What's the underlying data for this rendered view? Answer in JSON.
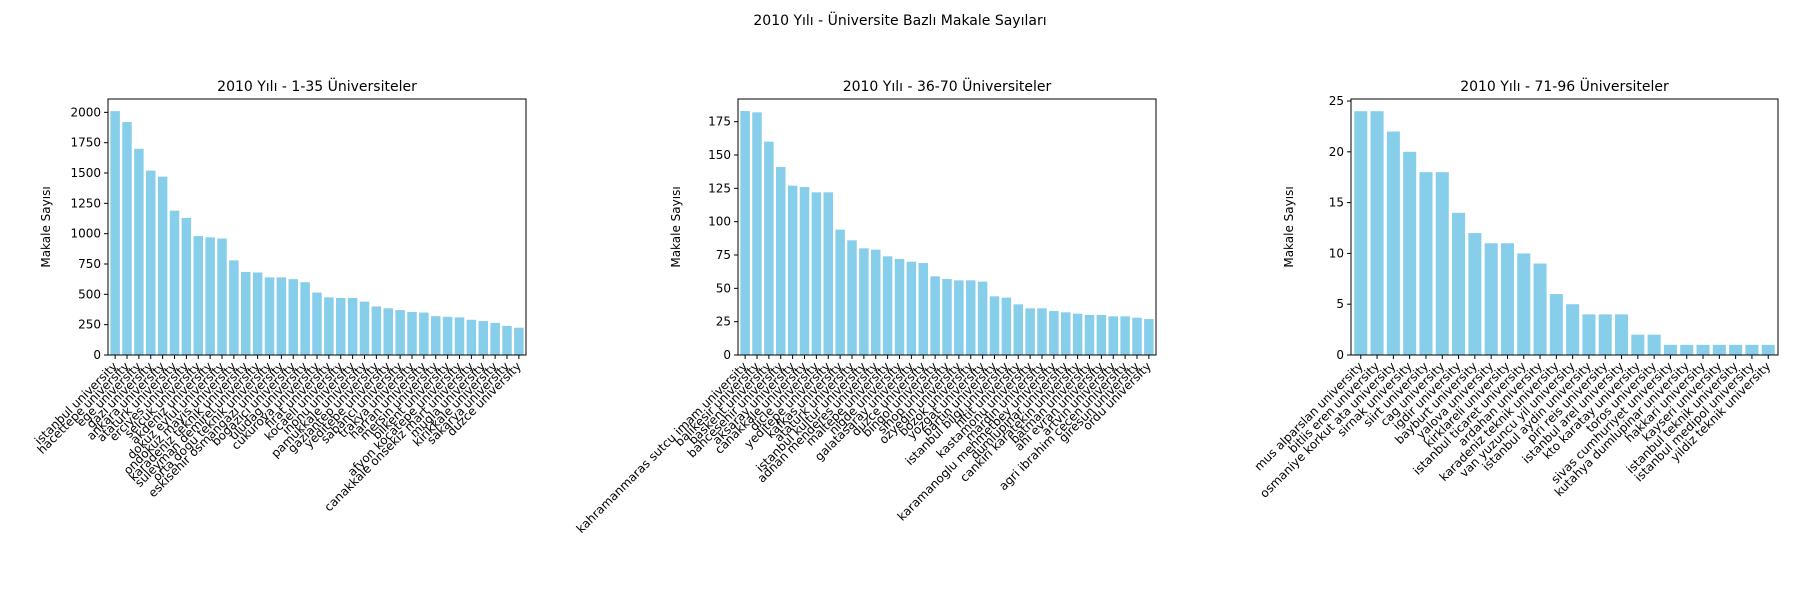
{
  "title": "2010 Yılı - Üniversite Bazlı Makale Sayıları",
  "chart_data": [
    {
      "type": "bar",
      "title": "2010 Yılı - 1-35 Üniversiteler",
      "ylabel": "Makale Sayısı",
      "color": "#87ceeb",
      "categories": [
        "istanbul university",
        "hacettepe university",
        "ege university",
        "gazi university",
        "ankara university",
        "ataturk university",
        "erciyes university",
        "selcuk university",
        "akdeniz university",
        "dokuz eylul university",
        "ondokuz mayis university",
        "karadeniz teknik university",
        "suleyman demirel university",
        "orta dogu teknik university",
        "eskisehir osmangazi university",
        "bogazici university",
        "uludag university",
        "cukurova university",
        "firat university",
        "kocaeli university",
        "inonu university",
        "pamukkale university",
        "gaziantep university",
        "yeditepe university",
        "sabanci university",
        "trakya university",
        "harran university",
        "mersin university",
        "bilkent university",
        "afyon kocatepe university",
        "canakkale onsekiz mart university",
        "mugla university",
        "kirikkale university",
        "sakarya university",
        "duzce university"
      ],
      "values": [
        2010,
        1920,
        1700,
        1520,
        1470,
        1190,
        1130,
        980,
        970,
        960,
        780,
        685,
        680,
        640,
        640,
        625,
        600,
        515,
        475,
        470,
        470,
        440,
        400,
        385,
        370,
        355,
        350,
        320,
        315,
        310,
        290,
        280,
        265,
        240,
        225
      ],
      "ylim": [
        0,
        2110
      ],
      "yticks": [
        0,
        250,
        500,
        750,
        1000,
        1250,
        1500,
        1750,
        2000
      ]
    },
    {
      "type": "bar",
      "title": "2010 Yılı - 36-70 Üniversiteler",
      "ylabel": "Makale Sayısı",
      "color": "#87ceeb",
      "categories": [
        "kahramanmaras sutcu imam university",
        "balikesir university",
        "baskent university",
        "bahcesehir university",
        "aksaray university",
        "canakkale university",
        "dicle university",
        "yeditepe university",
        "kafkas university",
        "ataturk university",
        "istanbul kultur university",
        "adnan menderes university",
        "maltepe university",
        "nigde university",
        "galatasaray university",
        "duzce university",
        "bingol university",
        "sinop university",
        "ozyegin university",
        "bozok university",
        "yozgat university",
        "bartin university",
        "istanbul bilgi university",
        "hitit university",
        "kastamonu university",
        "mardin university",
        "karamanoglu mehmetbey university",
        "dumlupinar university",
        "cankiri karatekin university",
        "batman university",
        "ahi evran university",
        "artvin university",
        "agri ibrahim cecen university",
        "giresun university",
        "ordu university"
      ],
      "values": [
        183,
        182,
        160,
        141,
        127,
        126,
        122,
        122,
        94,
        86,
        80,
        79,
        74,
        72,
        70,
        69,
        59,
        57,
        56,
        56,
        55,
        44,
        43,
        38,
        35,
        35,
        33,
        32,
        31,
        30,
        30,
        29,
        29,
        28,
        27
      ],
      "ylim": [
        0,
        192
      ],
      "yticks": [
        0,
        25,
        50,
        75,
        100,
        125,
        150,
        175
      ]
    },
    {
      "type": "bar",
      "title": "2010 Yılı - 71-96 Üniversiteler",
      "ylabel": "Makale Sayısı",
      "color": "#87ceeb",
      "categories": [
        "mus alparslan university",
        "bitlis eren university",
        "osmaniye korkut ata university",
        "sirnak university",
        "siirt university",
        "cag university",
        "igdir university",
        "bayburt university",
        "yalova university",
        "kirklareli university",
        "istanbul ticaret university",
        "ardahan university",
        "karadeniz teknik university",
        "van yuzuncu yil university",
        "istanbul aydin university",
        "piri reis university",
        "istanbul arel university",
        "kto karatay university",
        "toros university",
        "sivas cumhuriyet university",
        "kutahya dumlupinar university",
        "hakkari university",
        "kayseri university",
        "istanbul teknik university",
        "istanbul medipol university",
        "yildiz teknik university"
      ],
      "values": [
        24,
        24,
        22,
        20,
        18,
        18,
        14,
        12,
        11,
        11,
        10,
        9,
        6,
        5,
        4,
        4,
        4,
        2,
        2,
        1,
        1,
        1,
        1,
        1,
        1,
        1
      ],
      "ylim": [
        0,
        25.2
      ],
      "yticks": [
        0,
        5,
        10,
        15,
        20,
        25
      ]
    }
  ]
}
